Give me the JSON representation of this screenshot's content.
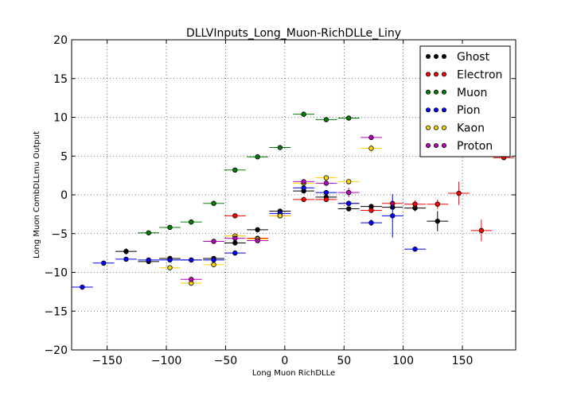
{
  "chart_data": {
    "type": "scatter",
    "title": "DLLVInputs_Long_Muon-RichDLLe_Liny",
    "xlabel": "Long Muon RichDLLe",
    "ylabel": "Long Muon CombDLLmu Output",
    "xlim": [
      -180,
      195
    ],
    "ylim": [
      -20,
      20
    ],
    "x_ticks": [
      -150,
      -100,
      -50,
      0,
      50,
      100,
      150
    ],
    "x_tick_labels": [
      "−150",
      "−100",
      "−50",
      "0",
      "50",
      "100",
      "150"
    ],
    "y_ticks": [
      -20,
      -15,
      -10,
      -5,
      0,
      5,
      10,
      15,
      20
    ],
    "y_tick_labels": [
      "−20",
      "−15",
      "−10",
      "−5",
      "0",
      "5",
      "10",
      "15",
      "20"
    ],
    "grid": true,
    "legend_position": "top-right",
    "series": [
      {
        "name": "Ghost",
        "color": "#000000",
        "points": [
          {
            "x": -134,
            "y": -7.3,
            "xerr": 9,
            "yerr": 0.4
          },
          {
            "x": -115,
            "y": -8.6,
            "xerr": 9,
            "yerr": 0.3
          },
          {
            "x": -97,
            "y": -8.2,
            "xerr": 9,
            "yerr": 0.3
          },
          {
            "x": -79,
            "y": -8.4,
            "xerr": 9,
            "yerr": 0.3
          },
          {
            "x": -60,
            "y": -8.2,
            "xerr": 9,
            "yerr": 0.3
          },
          {
            "x": -42,
            "y": -6.2,
            "xerr": 9,
            "yerr": 0.3
          },
          {
            "x": -23,
            "y": -4.5,
            "xerr": 9,
            "yerr": 0.3
          },
          {
            "x": -4,
            "y": -2.1,
            "xerr": 9,
            "yerr": 0.3
          },
          {
            "x": 16,
            "y": 0.5,
            "xerr": 9,
            "yerr": 0.3
          },
          {
            "x": 35,
            "y": -0.3,
            "xerr": 9,
            "yerr": 0.3
          },
          {
            "x": 54,
            "y": -1.8,
            "xerr": 9,
            "yerr": 0.3
          },
          {
            "x": 73,
            "y": -1.5,
            "xerr": 9,
            "yerr": 0.3
          },
          {
            "x": 91,
            "y": -1.6,
            "xerr": 9,
            "yerr": 0.3
          },
          {
            "x": 110,
            "y": -1.7,
            "xerr": 9,
            "yerr": 0.4
          },
          {
            "x": 129,
            "y": -3.4,
            "xerr": 9,
            "yerr": 1.3
          }
        ]
      },
      {
        "name": "Electron",
        "color": "#ff0000",
        "points": [
          {
            "x": -42,
            "y": -2.7,
            "xerr": 9,
            "yerr": 0.3
          },
          {
            "x": -23,
            "y": -5.6,
            "xerr": 9,
            "yerr": 0.3
          },
          {
            "x": -4,
            "y": -2.7,
            "xerr": 9,
            "yerr": 0.3
          },
          {
            "x": 16,
            "y": -0.6,
            "xerr": 9,
            "yerr": 0.2
          },
          {
            "x": 35,
            "y": -0.6,
            "xerr": 9,
            "yerr": 0.2
          },
          {
            "x": 54,
            "y": -1.1,
            "xerr": 9,
            "yerr": 0.2
          },
          {
            "x": 73,
            "y": -2.0,
            "xerr": 9,
            "yerr": 0.3
          },
          {
            "x": 91,
            "y": -1.1,
            "xerr": 9,
            "yerr": 0.4
          },
          {
            "x": 110,
            "y": -1.2,
            "xerr": 9,
            "yerr": 0.5
          },
          {
            "x": 129,
            "y": -1.2,
            "xerr": 9,
            "yerr": 0.6
          },
          {
            "x": 147,
            "y": 0.2,
            "xerr": 9,
            "yerr": 1.5
          },
          {
            "x": 166,
            "y": -4.6,
            "xerr": 9,
            "yerr": 1.4
          },
          {
            "x": 185,
            "y": 4.8,
            "xerr": 9,
            "yerr": 0.2
          }
        ]
      },
      {
        "name": "Muon",
        "color": "#008000",
        "points": [
          {
            "x": -115,
            "y": -4.9,
            "xerr": 9,
            "yerr": 0.2
          },
          {
            "x": -97,
            "y": -4.2,
            "xerr": 9,
            "yerr": 0.2
          },
          {
            "x": -79,
            "y": -3.5,
            "xerr": 9,
            "yerr": 0.2
          },
          {
            "x": -60,
            "y": -1.1,
            "xerr": 9,
            "yerr": 0.2
          },
          {
            "x": -42,
            "y": 3.2,
            "xerr": 9,
            "yerr": 0.2
          },
          {
            "x": -23,
            "y": 4.9,
            "xerr": 9,
            "yerr": 0.2
          },
          {
            "x": -4,
            "y": 6.1,
            "xerr": 9,
            "yerr": 0.2
          },
          {
            "x": 16,
            "y": 10.4,
            "xerr": 9,
            "yerr": 0.2
          },
          {
            "x": 35,
            "y": 9.7,
            "xerr": 9,
            "yerr": 0.2
          },
          {
            "x": 54,
            "y": 9.9,
            "xerr": 9,
            "yerr": 0.2
          }
        ]
      },
      {
        "name": "Pion",
        "color": "#0000ff",
        "points": [
          {
            "x": -171,
            "y": -11.9,
            "xerr": 9,
            "yerr": 0.2
          },
          {
            "x": -153,
            "y": -8.8,
            "xerr": 9,
            "yerr": 0.2
          },
          {
            "x": -134,
            "y": -8.3,
            "xerr": 9,
            "yerr": 0.2
          },
          {
            "x": -115,
            "y": -8.4,
            "xerr": 9,
            "yerr": 0.2
          },
          {
            "x": -97,
            "y": -8.4,
            "xerr": 9,
            "yerr": 0.2
          },
          {
            "x": -79,
            "y": -8.4,
            "xerr": 9,
            "yerr": 0.2
          },
          {
            "x": -60,
            "y": -8.4,
            "xerr": 9,
            "yerr": 0.2
          },
          {
            "x": -42,
            "y": -7.5,
            "xerr": 9,
            "yerr": 0.2
          },
          {
            "x": -23,
            "y": -5.9,
            "xerr": 9,
            "yerr": 0.2
          },
          {
            "x": -4,
            "y": -2.4,
            "xerr": 9,
            "yerr": 0.2
          },
          {
            "x": 16,
            "y": 0.9,
            "xerr": 9,
            "yerr": 0.2
          },
          {
            "x": 35,
            "y": 0.3,
            "xerr": 9,
            "yerr": 0.2
          },
          {
            "x": 54,
            "y": -1.1,
            "xerr": 9,
            "yerr": 0.3
          },
          {
            "x": 73,
            "y": -3.6,
            "xerr": 9,
            "yerr": 0.4
          },
          {
            "x": 91,
            "y": -2.7,
            "xerr": 9,
            "yerr": 2.8
          },
          {
            "x": 110,
            "y": -7.0,
            "xerr": 9,
            "yerr": 0.2
          }
        ]
      },
      {
        "name": "Kaon",
        "color": "#ffd700",
        "points": [
          {
            "x": -97,
            "y": -9.4,
            "xerr": 9,
            "yerr": 0.2
          },
          {
            "x": -79,
            "y": -11.4,
            "xerr": 9,
            "yerr": 0.2
          },
          {
            "x": -60,
            "y": -9.0,
            "xerr": 9,
            "yerr": 0.2
          },
          {
            "x": -42,
            "y": -5.3,
            "xerr": 9,
            "yerr": 0.2
          },
          {
            "x": -23,
            "y": -5.7,
            "xerr": 9,
            "yerr": 0.2
          },
          {
            "x": -4,
            "y": -2.7,
            "xerr": 9,
            "yerr": 0.2
          },
          {
            "x": 16,
            "y": 1.5,
            "xerr": 9,
            "yerr": 0.2
          },
          {
            "x": 35,
            "y": 2.2,
            "xerr": 9,
            "yerr": 0.2
          },
          {
            "x": 54,
            "y": 1.7,
            "xerr": 9,
            "yerr": 0.2
          },
          {
            "x": 73,
            "y": 6.0,
            "xerr": 9,
            "yerr": 0.5
          }
        ]
      },
      {
        "name": "Proton",
        "color": "#bf00bf",
        "points": [
          {
            "x": -79,
            "y": -10.9,
            "xerr": 9,
            "yerr": 0.2
          },
          {
            "x": -60,
            "y": -6.0,
            "xerr": 9,
            "yerr": 0.2
          },
          {
            "x": -42,
            "y": -5.6,
            "xerr": 9,
            "yerr": 0.2
          },
          {
            "x": -23,
            "y": -5.9,
            "xerr": 9,
            "yerr": 0.2
          },
          {
            "x": 16,
            "y": 1.7,
            "xerr": 9,
            "yerr": 0.2
          },
          {
            "x": 35,
            "y": 1.5,
            "xerr": 9,
            "yerr": 0.2
          },
          {
            "x": 54,
            "y": 0.3,
            "xerr": 9,
            "yerr": 0.6
          },
          {
            "x": 73,
            "y": 7.4,
            "xerr": 9,
            "yerr": 0.2
          }
        ]
      }
    ]
  }
}
